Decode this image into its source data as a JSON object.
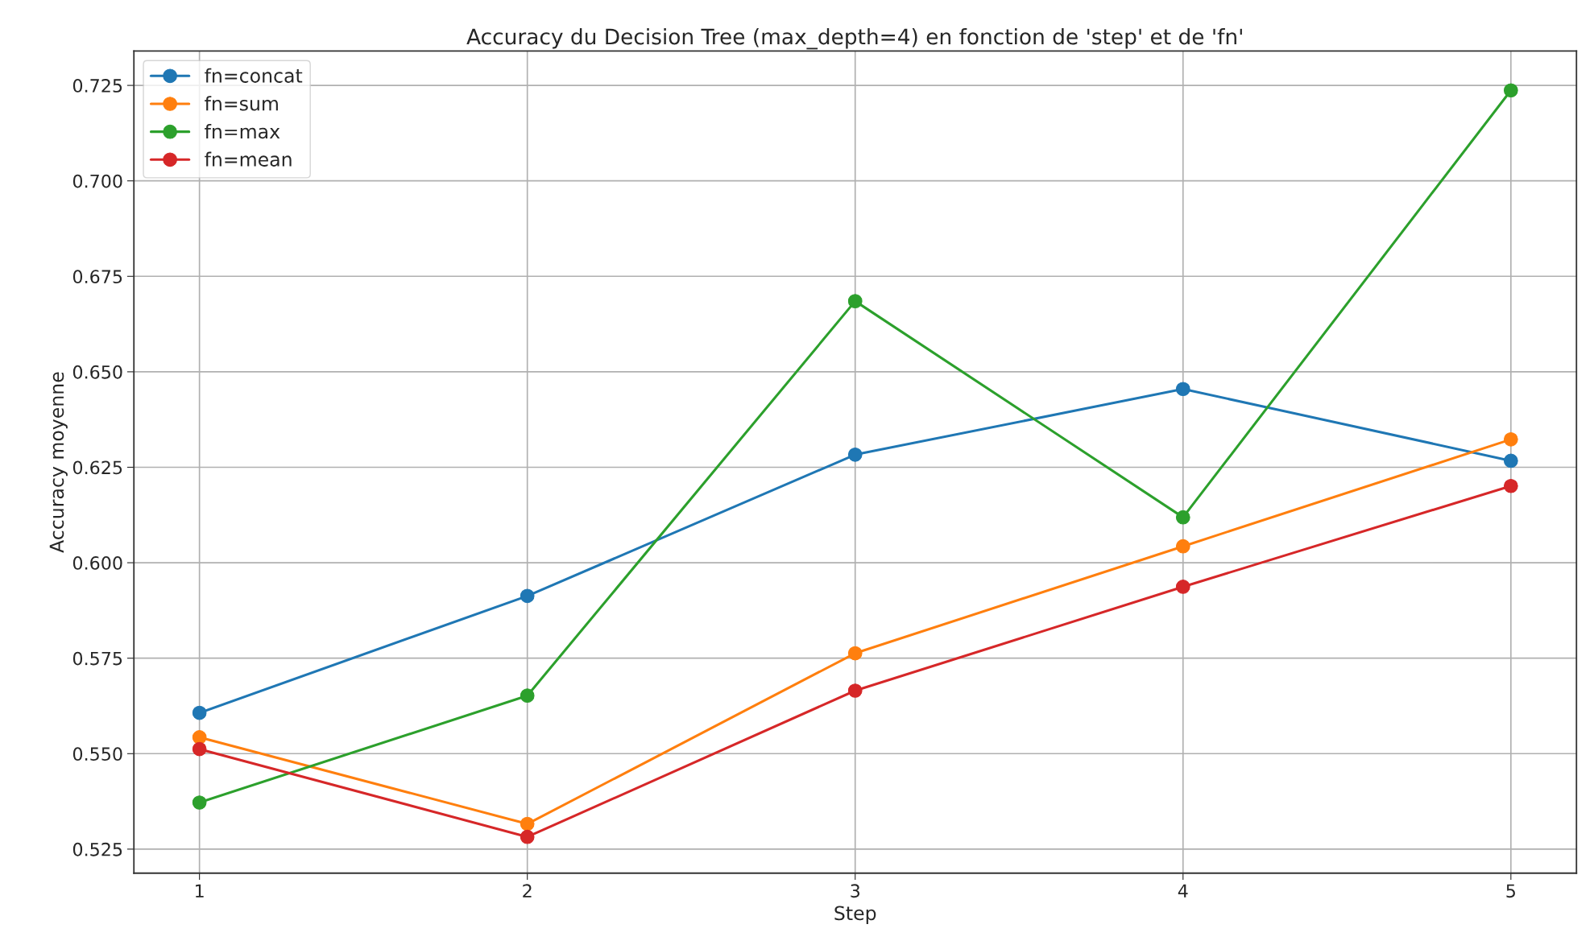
{
  "chart_data": {
    "type": "line",
    "title": "Accuracy du Decision Tree (max_depth=4) en fonction de 'step' et de 'fn'",
    "xlabel": "Step",
    "ylabel": "Accuracy moyenne",
    "x": [
      1,
      2,
      3,
      4,
      5
    ],
    "series": [
      {
        "name": "fn=concat",
        "color": "#1f77b4",
        "values": [
          0.5607,
          0.5913,
          0.6283,
          0.6455,
          0.6267
        ]
      },
      {
        "name": "fn=sum",
        "color": "#ff7f0e",
        "values": [
          0.5543,
          0.5316,
          0.5763,
          0.6043,
          0.6323
        ]
      },
      {
        "name": "fn=max",
        "color": "#2ca02c",
        "values": [
          0.5372,
          0.5652,
          0.6685,
          0.6119,
          0.7237
        ]
      },
      {
        "name": "fn=mean",
        "color": "#d62728",
        "values": [
          0.5512,
          0.5282,
          0.5665,
          0.5937,
          0.6201
        ]
      }
    ],
    "xlim": [
      0.8,
      5.2
    ],
    "xticks": [
      1,
      2,
      3,
      4,
      5
    ],
    "ylim": [
      0.5187,
      0.734
    ],
    "yticks": [
      {
        "value": 0.525,
        "label": "0.525"
      },
      {
        "value": 0.55,
        "label": "0.550"
      },
      {
        "value": 0.575,
        "label": "0.575"
      },
      {
        "value": 0.6,
        "label": "0.600"
      },
      {
        "value": 0.625,
        "label": "0.625"
      },
      {
        "value": 0.65,
        "label": "0.650"
      },
      {
        "value": 0.675,
        "label": "0.675"
      },
      {
        "value": 0.7,
        "label": "0.700"
      },
      {
        "value": 0.725,
        "label": "0.725"
      }
    ],
    "grid": true,
    "legend": "top left",
    "marker": "circle",
    "line_style": "solid"
  }
}
